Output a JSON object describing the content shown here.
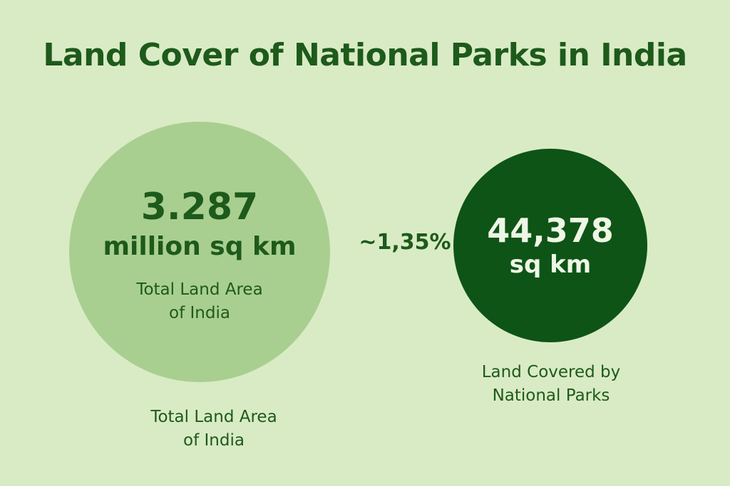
{
  "title": "Land Cover of National Parks in India",
  "india_total": {
    "value": "3.287",
    "unit": "million sq km",
    "label_line1": "Total Land Area",
    "label_line2": "of India"
  },
  "percentage": "~1,35%",
  "national_parks": {
    "value": "44,378",
    "unit": "sq km",
    "caption_line1": "Land Covered by",
    "caption_line2": "National Parks"
  },
  "bottom_caption": {
    "line1": "Total Land Area",
    "line2": "of India"
  },
  "colors": {
    "background": "#d9ebc5",
    "light_circle": "#a9cf90",
    "dark_circle": "#0e5416",
    "text_dark_green": "#1d5a1b",
    "text_light": "#eef6e6"
  }
}
